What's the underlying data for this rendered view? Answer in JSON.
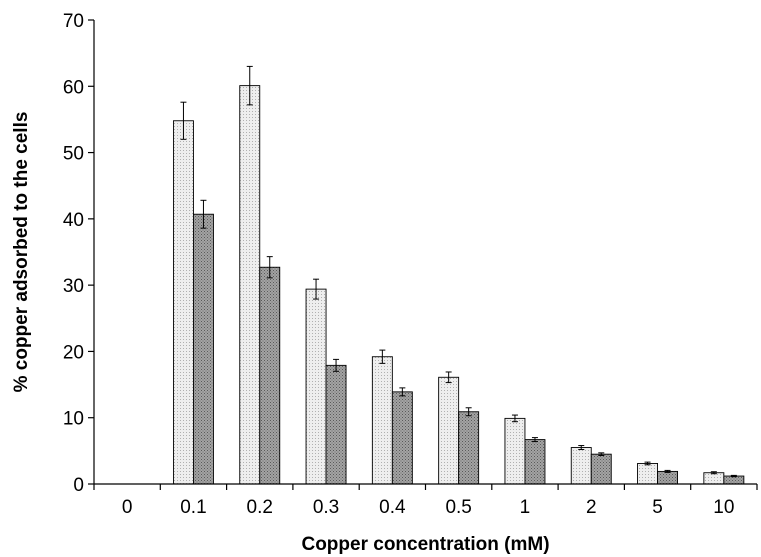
{
  "chart_data": {
    "type": "bar",
    "xlabel": "Copper concentration (mM)",
    "ylabel": "% copper adsorbed to the cells",
    "ylim": [
      0,
      70
    ],
    "yticks": [
      0,
      10,
      20,
      30,
      40,
      50,
      60,
      70
    ],
    "categories": [
      "0",
      "0.1",
      "0.2",
      "0.3",
      "0.4",
      "0.5",
      "1",
      "2",
      "5",
      "10"
    ],
    "series": [
      {
        "values": [
          0,
          54.8,
          60.1,
          29.4,
          19.2,
          16.1,
          9.9,
          5.5,
          3.1,
          1.7
        ],
        "errors": [
          0,
          2.8,
          2.9,
          1.5,
          1.0,
          0.8,
          0.5,
          0.3,
          0.2,
          0.15
        ],
        "color": "#e6e6e6"
      },
      {
        "values": [
          0,
          40.7,
          32.7,
          17.9,
          13.9,
          10.9,
          6.7,
          4.5,
          1.9,
          1.2
        ],
        "errors": [
          0,
          2.1,
          1.6,
          0.9,
          0.6,
          0.6,
          0.3,
          0.2,
          0.15,
          0.1
        ],
        "color": "#9a9a9a"
      }
    ],
    "grid": false,
    "legend": "none"
  }
}
